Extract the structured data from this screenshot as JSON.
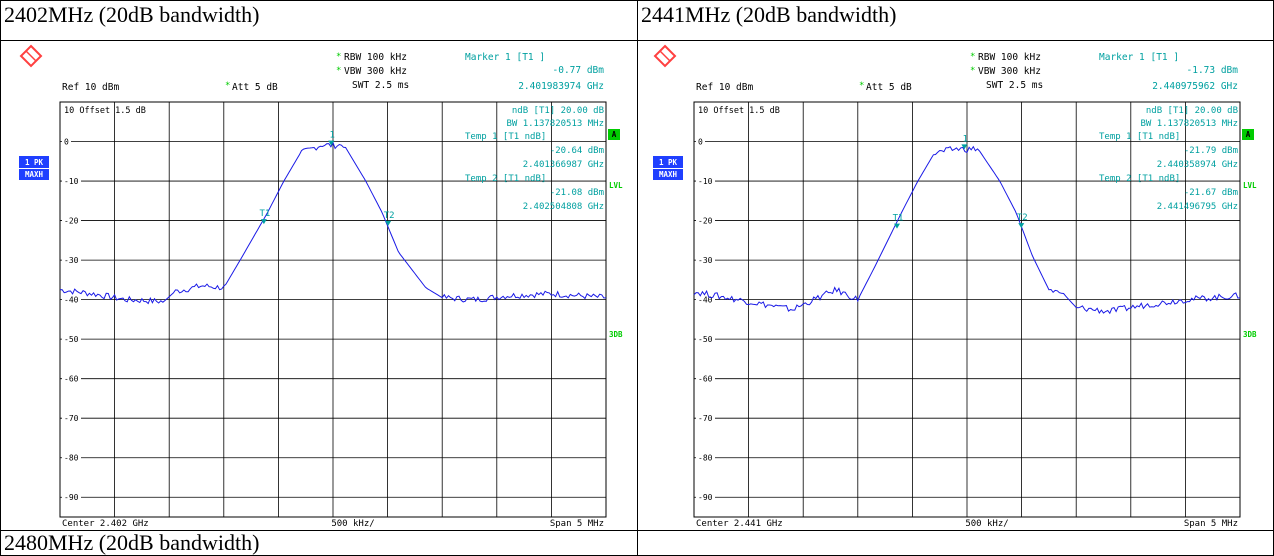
{
  "captions": {
    "p1": "2402MHz (20dB bandwidth)",
    "p2": "2441MHz (20dB bandwidth)",
    "p3": "2480MHz (20dB bandwidth)"
  },
  "colors": {
    "trace": "#1a1ae6",
    "cyan": "#00a0a0",
    "green": "#00cc00",
    "blue_badge": "#1f3fff",
    "logo": "#ff4040"
  },
  "panels": [
    {
      "header": {
        "rbw": "RBW 100 kHz",
        "vbw": "VBW 300 kHz",
        "swt": "SWT 2.5 ms",
        "ref": "Ref  10 dBm",
        "att": "Att  5 dB",
        "offset": "10  Offset   1.5 dB",
        "star": "*"
      },
      "markers": {
        "m1_title": "Marker 1 [T1 ]",
        "m1_level": "-0.77 dBm",
        "m1_freq": "2.401983974 GHz",
        "ndb_line": "ndB [T1]    20.00 dB",
        "bw_line": "BW   1.137820513 MHz",
        "t1_title": "Temp 1 [T1 ndB]",
        "t1_level": "-20.64 dBm",
        "t1_freq": "2.401366987 GHz",
        "t2_title": "Temp 2 [T1 ndB]",
        "t2_level": "-21.08 dBm",
        "t2_freq": "2.402504808 GHz"
      },
      "footer": {
        "center": "Center  2.402 GHz",
        "div": "500 kHz/",
        "span": "Span  5 MHz"
      },
      "side": {
        "pk": "1 PK",
        "maxh": "MAXH",
        "a": "A",
        "lvl": "LVL",
        "three_db": "3DB"
      }
    },
    {
      "header": {
        "rbw": "RBW 100 kHz",
        "vbw": "VBW 300 kHz",
        "swt": "SWT 2.5 ms",
        "ref": "Ref  10 dBm",
        "att": "Att  5 dB",
        "offset": "10  Offset   1.5 dB",
        "star": "*"
      },
      "markers": {
        "m1_title": "Marker 1 [T1 ]",
        "m1_level": "-1.73 dBm",
        "m1_freq": "2.440975962 GHz",
        "ndb_line": "ndB [T1]    20.00 dB",
        "bw_line": "BW   1.137820513 MHz",
        "t1_title": "Temp 1 [T1 ndB]",
        "t1_level": "-21.79 dBm",
        "t1_freq": "2.440358974 GHz",
        "t2_title": "Temp 2 [T1 ndB]",
        "t2_level": "-21.67 dBm",
        "t2_freq": "2.441496795 GHz"
      },
      "footer": {
        "center": "Center  2.441 GHz",
        "div": "500 kHz/",
        "span": "Span  5 MHz"
      },
      "side": {
        "pk": "1 PK",
        "maxh": "MAXH",
        "a": "A",
        "lvl": "LVL",
        "three_db": "3DB"
      }
    }
  ],
  "chart_data": [
    {
      "type": "line",
      "x_center_ghz": 2.402,
      "span_mhz": 5,
      "ylim": [
        -95,
        10
      ],
      "yticks": [
        "10",
        "0",
        "-10",
        "-20",
        "-30",
        "-40",
        "-50",
        "-60",
        "-70",
        "-80",
        "-90"
      ],
      "grid": true,
      "series": [
        {
          "x_mhz": [
            -2.5,
            -2.2,
            -1.9,
            -1.55,
            -1.45,
            -1.2,
            -1.0,
            -0.85,
            -0.6,
            -0.45,
            -0.3,
            -0.1,
            0.0,
            0.1,
            0.3,
            0.45,
            0.6,
            0.85,
            1.0,
            1.3,
            1.6,
            2.0,
            2.5
          ],
          "y_dbm": [
            -37.5,
            -38.5,
            -40.0,
            -40.5,
            -38.0,
            -36.5,
            -37.0,
            -30.0,
            -18.0,
            -10.0,
            -3.0,
            -0.8,
            -1.0,
            -0.8,
            -10.0,
            -18.0,
            -28.0,
            -37.0,
            -39.5,
            -40.0,
            -39.0,
            -38.5,
            -39.5
          ]
        }
      ],
      "markers": [
        {
          "label": "1",
          "x_mhz": -0.016,
          "y_dbm": -0.77
        },
        {
          "label": "T1",
          "x_mhz": -0.633,
          "y_dbm": -20.64
        },
        {
          "label": "T2",
          "x_mhz": 0.505,
          "y_dbm": -21.08
        }
      ]
    },
    {
      "type": "line",
      "x_center_ghz": 2.441,
      "span_mhz": 5,
      "ylim": [
        -95,
        10
      ],
      "yticks": [
        "10",
        "0",
        "-10",
        "-20",
        "-30",
        "-40",
        "-50",
        "-60",
        "-70",
        "-80",
        "-90"
      ],
      "grid": true,
      "series": [
        {
          "x_mhz": [
            -2.5,
            -2.2,
            -1.9,
            -1.6,
            -1.2,
            -1.0,
            -0.85,
            -0.6,
            -0.45,
            -0.3,
            -0.1,
            0.0,
            0.1,
            0.3,
            0.45,
            0.6,
            0.75,
            0.9,
            1.0,
            1.3,
            1.6,
            2.0,
            2.5
          ],
          "y_dbm": [
            -38.0,
            -39.5,
            -41.0,
            -42.5,
            -37.5,
            -40.0,
            -32.0,
            -18.0,
            -10.0,
            -3.0,
            -1.8,
            -2.0,
            -1.8,
            -10.0,
            -18.0,
            -29.0,
            -37.5,
            -39.0,
            -42.0,
            -43.0,
            -41.5,
            -40.0,
            -39.0
          ]
        }
      ],
      "markers": [
        {
          "label": "1",
          "x_mhz": -0.024,
          "y_dbm": -1.73
        },
        {
          "label": "T1",
          "x_mhz": -0.641,
          "y_dbm": -21.79
        },
        {
          "label": "T2",
          "x_mhz": 0.497,
          "y_dbm": -21.67
        }
      ]
    }
  ]
}
